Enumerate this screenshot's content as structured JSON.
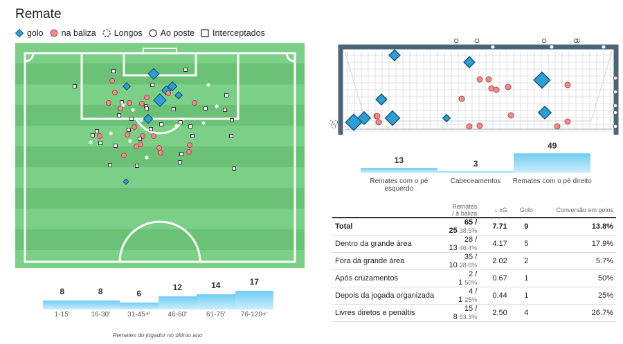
{
  "title": "Remate",
  "legend": [
    {
      "label": "golo",
      "icon": "diamond-icon"
    },
    {
      "label": "na baliza",
      "icon": "circle-icon"
    },
    {
      "label": "Longos",
      "icon": "dashed-circle-icon"
    },
    {
      "label": "Ao poste",
      "icon": "ring-icon"
    },
    {
      "label": "Interceptados",
      "icon": "square-icon"
    }
  ],
  "colors": {
    "pitch_light": "#7bcf86",
    "pitch_dark": "#6bc276",
    "goal_marker": "#2d9fd8",
    "on_target": "#f08b8b",
    "bar": "#6fcdf3",
    "goal_frame": "#4a6478"
  },
  "time_bars": {
    "items": [
      {
        "label": "1-15'",
        "value": 8
      },
      {
        "label": "16-30'",
        "value": 8
      },
      {
        "label": "31-45+'",
        "value": 6
      },
      {
        "label": "46-60'",
        "value": 12
      },
      {
        "label": "61-75'",
        "value": 14
      },
      {
        "label": "76-120+'",
        "value": 17
      }
    ],
    "caption": "Remates do jogador no último ano"
  },
  "body_bars": [
    {
      "label": "Remates com o pé esquerdo",
      "value": 13
    },
    {
      "label": "Cabeceamentos",
      "value": 3
    },
    {
      "label": "Remates com o pé direito",
      "value": 49
    }
  ],
  "table": {
    "headers": [
      "",
      "Remates / à baliza",
      "↓ xG",
      "Golo",
      "Conversão em golos"
    ],
    "rows": [
      {
        "label": "Total",
        "shots": "65 / 25",
        "pct": "38.5%",
        "xg": "7.71",
        "goals": "9",
        "conv": "13.8%"
      },
      {
        "label": "Dentro da grande área",
        "shots": "28 / 13",
        "pct": "46.4%",
        "xg": "4.17",
        "goals": "5",
        "conv": "17.9%"
      },
      {
        "label": "Fora da grande área",
        "shots": "35 / 10",
        "pct": "28.6%",
        "xg": "2.02",
        "goals": "2",
        "conv": "5.7%"
      },
      {
        "label": "Após cruzamentos",
        "shots": "2 / 1",
        "pct": "50%",
        "xg": "0.67",
        "goals": "1",
        "conv": "50%"
      },
      {
        "label": "Depois da jogada organizada",
        "shots": "4 / 1",
        "pct": "25%",
        "xg": "0.44",
        "goals": "1",
        "conv": "25%"
      },
      {
        "label": "Livres diretos e penáltis",
        "shots": "15 / 8",
        "pct": "53.3%",
        "xg": "2.50",
        "goals": "4",
        "conv": "26.7%"
      }
    ]
  }
}
